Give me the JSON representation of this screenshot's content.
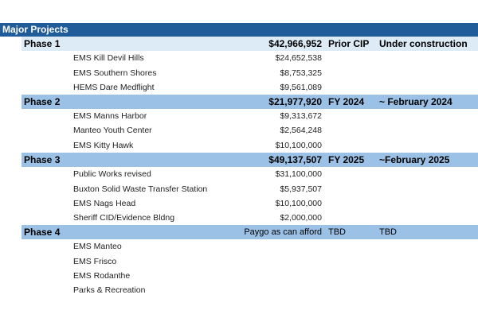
{
  "title": "Major Projects",
  "phases": [
    {
      "label": "Phase 1",
      "total": "$42,966,952",
      "funding": "Prior CIP",
      "timeline": "Under construction",
      "items": [
        {
          "name": "EMS Kill Devil Hills",
          "amount": "$24,652,538"
        },
        {
          "name": "EMS Southern Shores",
          "amount": "$8,753,325"
        },
        {
          "name": "HEMS Dare Medflight",
          "amount": "$9,561,089"
        }
      ]
    },
    {
      "label": "Phase 2",
      "total": "$21,977,920",
      "funding": "FY 2024",
      "timeline": "~ February 2024",
      "items": [
        {
          "name": "EMS Manns Harbor",
          "amount": "$9,313,672"
        },
        {
          "name": "Manteo Youth Center",
          "amount": "$2,564,248"
        },
        {
          "name": "EMS Kitty Hawk",
          "amount": "$10,100,000"
        }
      ]
    },
    {
      "label": "Phase 3",
      "total": "$49,137,507",
      "funding": "FY 2025",
      "timeline": "~February 2025",
      "items": [
        {
          "name": "Public Works revised",
          "amount": "$31,100,000"
        },
        {
          "name": "Buxton Solid Waste Transfer Station",
          "amount": "$5,937,507"
        },
        {
          "name": "EMS Nags Head",
          "amount": "$10,100,000"
        },
        {
          "name": "Sheriff CID/Evidence Bldng",
          "amount": "$2,000,000"
        }
      ]
    },
    {
      "label": "Phase 4",
      "total": "Paygo as can afford",
      "funding": "TBD",
      "timeline": "TBD",
      "items": [
        {
          "name": "EMS Manteo",
          "amount": ""
        },
        {
          "name": "EMS Frisco",
          "amount": ""
        },
        {
          "name": "EMS Rodanthe",
          "amount": ""
        },
        {
          "name": "Parks & Recreation",
          "amount": ""
        }
      ]
    }
  ],
  "colors": {
    "header": "#1f5c99",
    "phase1": "#ddebf7",
    "phase": "#9bc2e6"
  }
}
